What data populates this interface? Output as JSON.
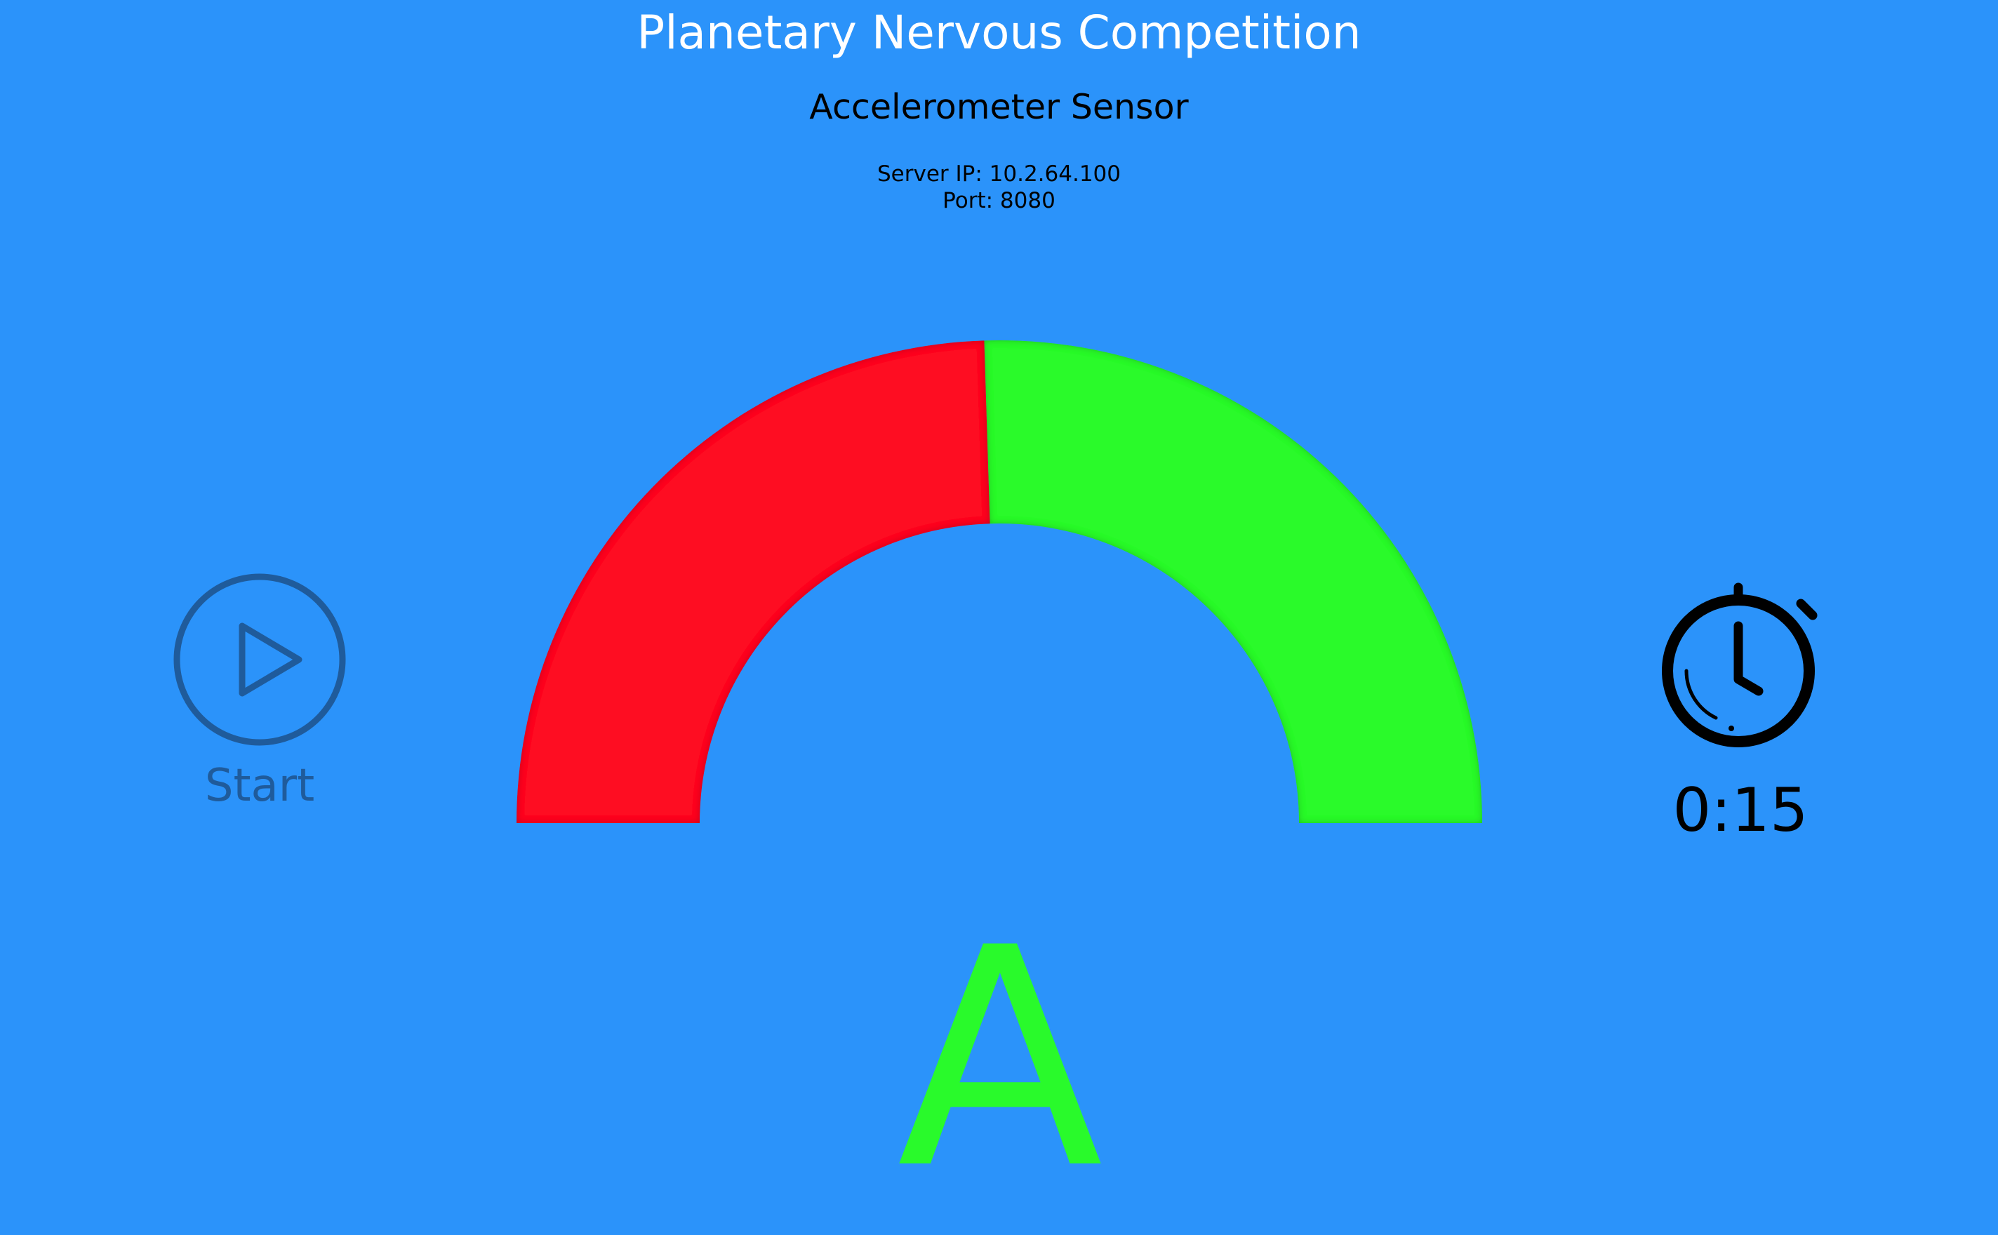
{
  "app": {
    "title": "Planetary Nervous Competition",
    "sensor_name": "Accelerometer Sensor"
  },
  "server": {
    "ip_text": "Server IP: 10.2.64.100",
    "port_text": "Port: 8080"
  },
  "controls": {
    "start_label": "Start",
    "start_icon": "play-circle-icon"
  },
  "timer": {
    "icon": "stopwatch-icon",
    "value": "0:15"
  },
  "gauge": {
    "level_fraction": 0.49,
    "fill_color": "#fe0f20",
    "empty_color": "#29fa2b"
  },
  "status": {
    "letter": "A",
    "color": "#29fa2b"
  },
  "theme": {
    "background": "#2b93fa",
    "start_color": "#1f5b9b"
  }
}
